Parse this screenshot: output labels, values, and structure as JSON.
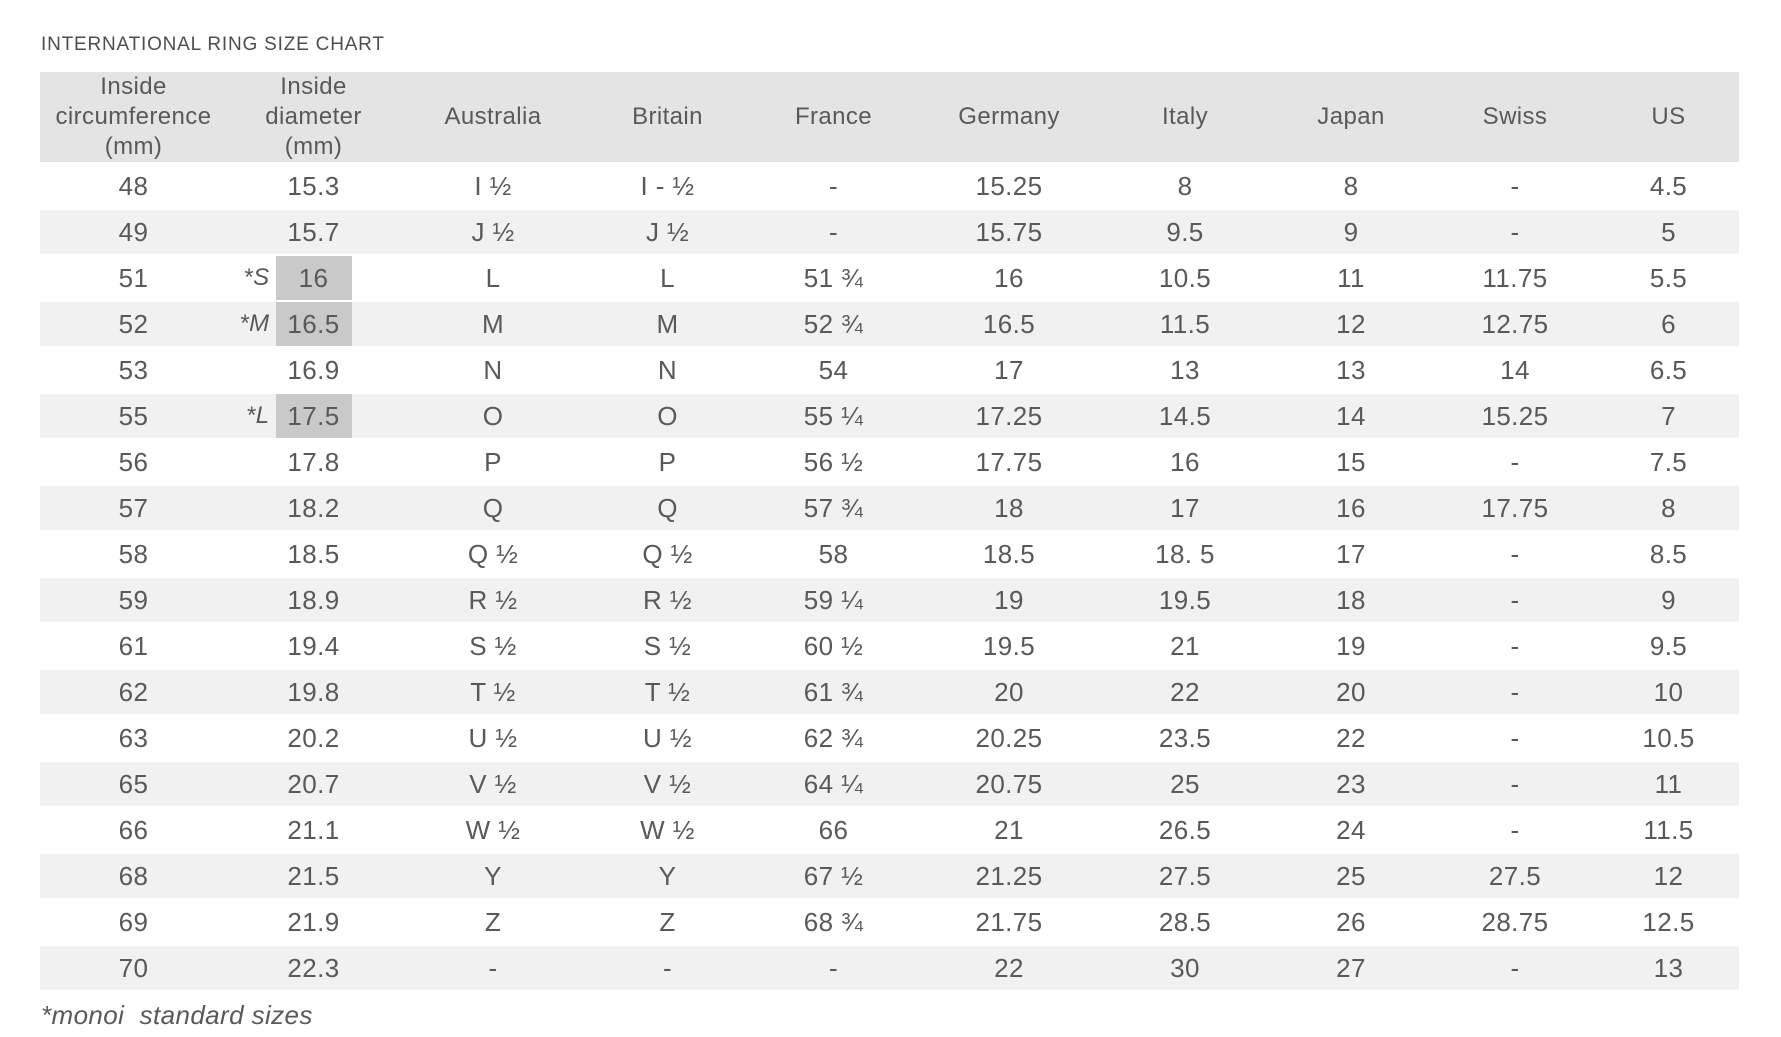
{
  "title": "INTERNATIONAL RING SIZE CHART",
  "footnote": "*monoi  standard sizes",
  "colors": {
    "header_bg": "#e4e4e4",
    "stripe_bg": "#f1f1f1",
    "highlight_bg": "#c9c9c9",
    "text": "#58595b"
  },
  "chart_data": {
    "type": "table",
    "title": "INTERNATIONAL RING SIZE CHART",
    "footnote": "*monoi  standard sizes",
    "highlight_meaning": "monoi standard sizes (marked *S, *M, *L with shaded inside-diameter cells)",
    "columns": [
      {
        "key": "circumference",
        "label": "Inside\ncircumference\n(mm)"
      },
      {
        "key": "diameter",
        "label": "Inside\ndiameter\n(mm)"
      },
      {
        "key": "australia",
        "label": "Australia"
      },
      {
        "key": "britain",
        "label": "Britain"
      },
      {
        "key": "france",
        "label": "France"
      },
      {
        "key": "germany",
        "label": "Germany"
      },
      {
        "key": "italy",
        "label": "Italy"
      },
      {
        "key": "japan",
        "label": "Japan"
      },
      {
        "key": "swiss",
        "label": "Swiss"
      },
      {
        "key": "us",
        "label": "US"
      }
    ],
    "rows": [
      {
        "circumference": "48",
        "marker": "",
        "diameter": "15.3",
        "highlighted": false,
        "australia": "I ½",
        "britain": "I - ½",
        "france": "-",
        "germany": "15.25",
        "italy": "8",
        "japan": "8",
        "swiss": "-",
        "us": "4.5"
      },
      {
        "circumference": "49",
        "marker": "",
        "diameter": "15.7",
        "highlighted": false,
        "australia": "J ½",
        "britain": "J ½",
        "france": "-",
        "germany": "15.75",
        "italy": "9.5",
        "japan": "9",
        "swiss": "-",
        "us": "5"
      },
      {
        "circumference": "51",
        "marker": "*S",
        "diameter": "16",
        "highlighted": true,
        "australia": "L",
        "britain": "L",
        "france": "51 ¾",
        "germany": "16",
        "italy": "10.5",
        "japan": "11",
        "swiss": "11.75",
        "us": "5.5"
      },
      {
        "circumference": "52",
        "marker": "*M",
        "diameter": "16.5",
        "highlighted": true,
        "australia": "M",
        "britain": "M",
        "france": "52 ¾",
        "germany": "16.5",
        "italy": "11.5",
        "japan": "12",
        "swiss": "12.75",
        "us": "6"
      },
      {
        "circumference": "53",
        "marker": "",
        "diameter": "16.9",
        "highlighted": false,
        "australia": "N",
        "britain": "N",
        "france": "54",
        "germany": "17",
        "italy": "13",
        "japan": "13",
        "swiss": "14",
        "us": "6.5"
      },
      {
        "circumference": "55",
        "marker": "*L",
        "diameter": "17.5",
        "highlighted": true,
        "australia": "O",
        "britain": "O",
        "france": "55 ¼",
        "germany": "17.25",
        "italy": "14.5",
        "japan": "14",
        "swiss": "15.25",
        "us": "7"
      },
      {
        "circumference": "56",
        "marker": "",
        "diameter": "17.8",
        "highlighted": false,
        "australia": "P",
        "britain": "P",
        "france": "56 ½",
        "germany": "17.75",
        "italy": "16",
        "japan": "15",
        "swiss": "-",
        "us": "7.5"
      },
      {
        "circumference": "57",
        "marker": "",
        "diameter": "18.2",
        "highlighted": false,
        "australia": "Q",
        "britain": "Q",
        "france": "57 ¾",
        "germany": "18",
        "italy": "17",
        "japan": "16",
        "swiss": "17.75",
        "us": "8"
      },
      {
        "circumference": "58",
        "marker": "",
        "diameter": "18.5",
        "highlighted": false,
        "australia": "Q ½",
        "britain": "Q ½",
        "france": "58",
        "germany": "18.5",
        "italy": "18. 5",
        "japan": "17",
        "swiss": "-",
        "us": "8.5"
      },
      {
        "circumference": "59",
        "marker": "",
        "diameter": "18.9",
        "highlighted": false,
        "australia": "R ½",
        "britain": "R ½",
        "france": "59 ¼",
        "germany": "19",
        "italy": "19.5",
        "japan": "18",
        "swiss": "-",
        "us": "9"
      },
      {
        "circumference": "61",
        "marker": "",
        "diameter": "19.4",
        "highlighted": false,
        "australia": "S ½",
        "britain": "S ½",
        "france": "60 ½",
        "germany": "19.5",
        "italy": "21",
        "japan": "19",
        "swiss": "-",
        "us": "9.5"
      },
      {
        "circumference": "62",
        "marker": "",
        "diameter": "19.8",
        "highlighted": false,
        "australia": "T ½",
        "britain": "T ½",
        "france": "61 ¾",
        "germany": "20",
        "italy": "22",
        "japan": "20",
        "swiss": "-",
        "us": "10"
      },
      {
        "circumference": "63",
        "marker": "",
        "diameter": "20.2",
        "highlighted": false,
        "australia": "U ½",
        "britain": "U ½",
        "france": "62 ¾",
        "germany": "20.25",
        "italy": "23.5",
        "japan": "22",
        "swiss": "-",
        "us": "10.5"
      },
      {
        "circumference": "65",
        "marker": "",
        "diameter": "20.7",
        "highlighted": false,
        "australia": "V ½",
        "britain": "V ½",
        "france": "64 ¼",
        "germany": "20.75",
        "italy": "25",
        "japan": "23",
        "swiss": "-",
        "us": "11"
      },
      {
        "circumference": "66",
        "marker": "",
        "diameter": "21.1",
        "highlighted": false,
        "australia": "W ½",
        "britain": "W ½",
        "france": "66",
        "germany": "21",
        "italy": "26.5",
        "japan": "24",
        "swiss": "-",
        "us": "11.5"
      },
      {
        "circumference": "68",
        "marker": "",
        "diameter": "21.5",
        "highlighted": false,
        "australia": "Y",
        "britain": "Y",
        "france": "67 ½",
        "germany": "21.25",
        "italy": "27.5",
        "japan": "25",
        "swiss": "27.5",
        "us": "12"
      },
      {
        "circumference": "69",
        "marker": "",
        "diameter": "21.9",
        "highlighted": false,
        "australia": "Z",
        "britain": "Z",
        "france": "68 ¾",
        "germany": "21.75",
        "italy": "28.5",
        "japan": "26",
        "swiss": "28.75",
        "us": "12.5"
      },
      {
        "circumference": "70",
        "marker": "",
        "diameter": "22.3",
        "highlighted": false,
        "australia": "-",
        "britain": "-",
        "france": "-",
        "germany": "22",
        "italy": "30",
        "japan": "27",
        "swiss": "-",
        "us": "13"
      }
    ]
  }
}
